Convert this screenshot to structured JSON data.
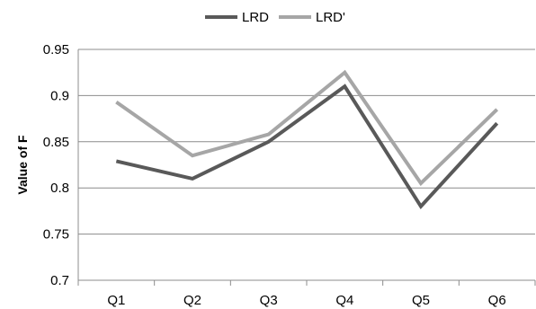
{
  "chart_data": {
    "type": "line",
    "title": "",
    "xlabel": "",
    "ylabel": "Value of F",
    "categories": [
      "Q1",
      "Q2",
      "Q3",
      "Q4",
      "Q5",
      "Q6"
    ],
    "ylim": [
      0.7,
      0.95
    ],
    "yticks": [
      0.7,
      0.75,
      0.8,
      0.85,
      0.9,
      0.95
    ],
    "ytick_labels": [
      "0.7",
      "0.75",
      "0.8",
      "0.85",
      "0.9",
      "0.95"
    ],
    "grid": true,
    "legend_position": "top",
    "series": [
      {
        "name": "LRD",
        "color": "#595959",
        "values": [
          0.829,
          0.81,
          0.85,
          0.91,
          0.78,
          0.87
        ]
      },
      {
        "name": "LRD'",
        "color": "#a6a6a6",
        "values": [
          0.893,
          0.835,
          0.858,
          0.925,
          0.805,
          0.885
        ]
      }
    ]
  }
}
